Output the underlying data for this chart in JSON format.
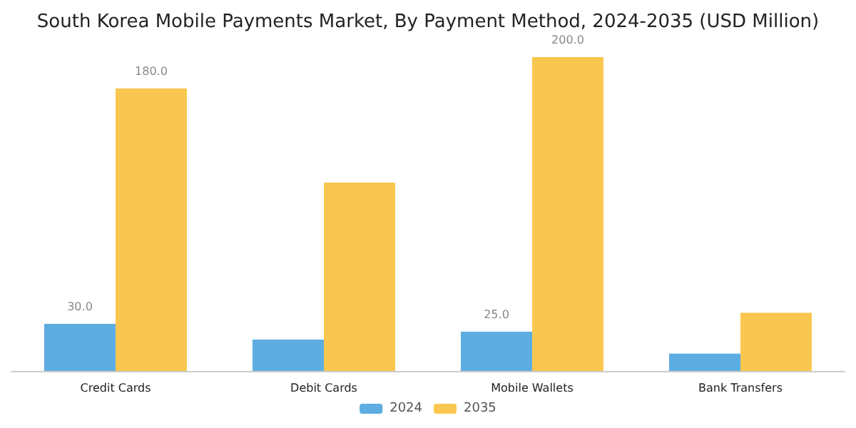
{
  "chart_data": {
    "type": "bar",
    "title": "South Korea Mobile Payments Market, By Payment Method, 2024-2035 (USD Million)",
    "categories": [
      "Credit Cards",
      "Debit Cards",
      "Mobile Wallets",
      "Bank Transfers"
    ],
    "series": [
      {
        "name": "2024",
        "color": "#5dade2",
        "values": [
          30,
          20,
          25,
          11
        ],
        "value_labels": [
          "30.0",
          null,
          "25.0",
          null
        ]
      },
      {
        "name": "2035",
        "color": "#f9c74f",
        "values": [
          180,
          120,
          200,
          37
        ],
        "value_labels": [
          "180.0",
          null,
          "200.0",
          null
        ]
      }
    ],
    "legend": "bottom"
  }
}
